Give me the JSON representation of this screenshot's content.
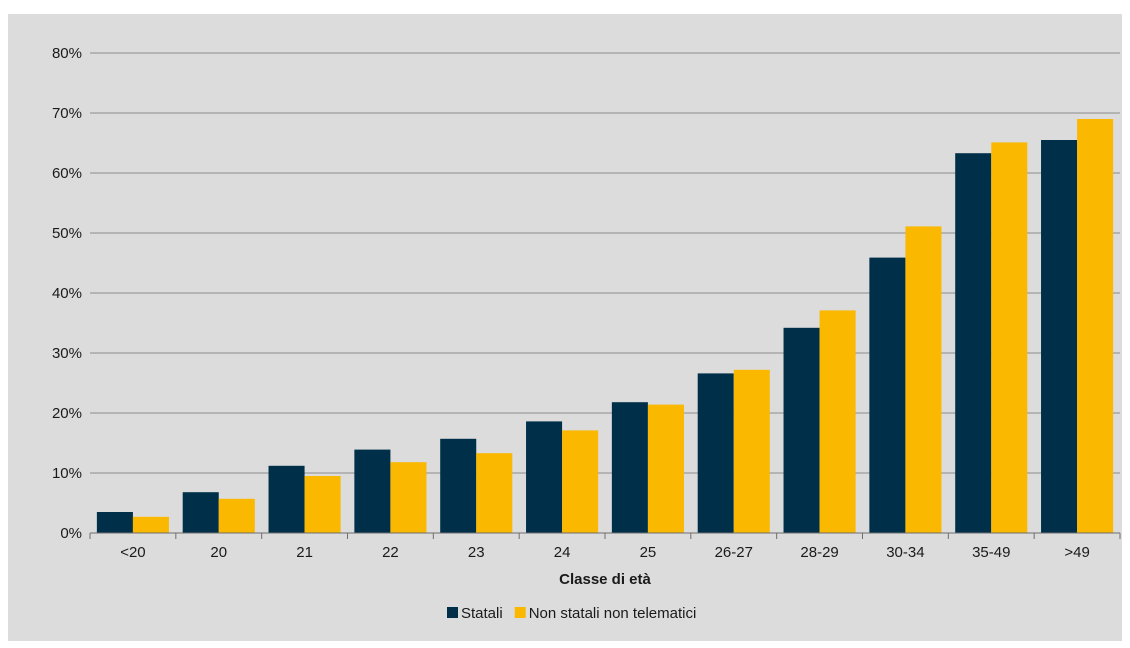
{
  "chart_data": {
    "type": "bar",
    "title": "",
    "xlabel": "Classe di età",
    "ylabel": "",
    "categories": [
      "<20",
      "20",
      "21",
      "22",
      "23",
      "24",
      "25",
      "26-27",
      "28-29",
      "30-34",
      "35-49",
      ">49"
    ],
    "series": [
      {
        "name": "Statali",
        "color": "#003049",
        "values": [
          3.5,
          6.8,
          11.2,
          13.9,
          15.7,
          18.6,
          21.8,
          26.6,
          34.2,
          45.9,
          63.3,
          65.5
        ]
      },
      {
        "name": "Non statali non telematici",
        "color": "#fbb800",
        "values": [
          2.7,
          5.7,
          9.5,
          11.8,
          13.3,
          17.1,
          21.4,
          27.2,
          37.1,
          51.1,
          65.1,
          69.0
        ]
      }
    ],
    "ylim": [
      0,
      80
    ],
    "yticks": [
      0,
      10,
      20,
      30,
      40,
      50,
      60,
      70,
      80
    ],
    "ytick_labels": [
      "0%",
      "10%",
      "20%",
      "30%",
      "40%",
      "50%",
      "60%",
      "70%",
      "80%"
    ],
    "grid": true,
    "legend_position": "bottom"
  }
}
